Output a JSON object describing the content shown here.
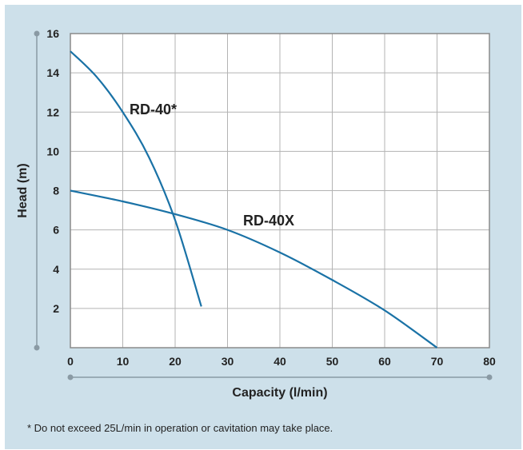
{
  "chart_data": {
    "type": "line",
    "xlabel": "Capacity (l/min)",
    "ylabel": "Head (m)",
    "xlim": [
      0,
      80
    ],
    "ylim": [
      0,
      16
    ],
    "xticks": [
      0,
      10,
      20,
      30,
      40,
      50,
      60,
      70,
      80
    ],
    "yticks": [
      2,
      4,
      6,
      8,
      10,
      12,
      14,
      16
    ],
    "grid": true,
    "series_color": "#1a72a6",
    "series": [
      {
        "name": "RD-40*",
        "x": [
          0,
          5,
          10,
          15,
          20,
          25
        ],
        "y": [
          15.1,
          13.8,
          12.0,
          9.7,
          6.5,
          2.1
        ]
      },
      {
        "name": "RD-40X",
        "x": [
          0,
          10,
          20,
          30,
          40,
          50,
          60,
          70
        ],
        "y": [
          8.0,
          7.45,
          6.8,
          6.0,
          4.85,
          3.45,
          1.9,
          0.0
        ]
      }
    ]
  },
  "footnote": "* Do not exceed 25L/min in operation or cavitation may take place."
}
